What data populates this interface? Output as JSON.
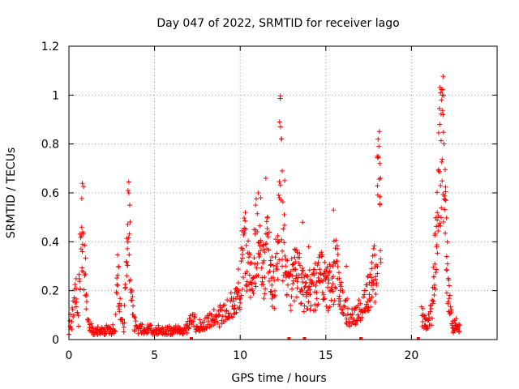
{
  "chart_data": {
    "type": "scatter",
    "title": "Day 047 of 2022, SRMTID for receiver lago",
    "xlabel": "GPS time / hours",
    "ylabel": "SRMTID / TECUs",
    "xlim": [
      0,
      25
    ],
    "ylim": [
      0,
      1.2
    ],
    "x_ticks": [
      0,
      5,
      10,
      15,
      20
    ],
    "x_tick_labels": [
      "0",
      "5",
      "10",
      "15",
      "20"
    ],
    "y_ticks": [
      0,
      0.2,
      0.4,
      0.6,
      0.8,
      1,
      1.2
    ],
    "y_tick_labels": [
      "0",
      "0.2",
      "0.4",
      "0.6",
      "0.8",
      "1",
      "1.2"
    ],
    "grid": true,
    "marker": "plus",
    "marker_color": "#ff0000",
    "series": [
      {
        "name": "SRMTID",
        "profile": [
          [
            0.0,
            0.05
          ],
          [
            0.2,
            0.1
          ],
          [
            0.4,
            0.18
          ],
          [
            0.55,
            0.08
          ],
          [
            0.7,
            0.42
          ],
          [
            0.85,
            0.45
          ],
          [
            1.0,
            0.15
          ],
          [
            1.2,
            0.05
          ],
          [
            1.5,
            0.03
          ],
          [
            2.0,
            0.035
          ],
          [
            2.5,
            0.04
          ],
          [
            2.7,
            0.05
          ],
          [
            2.85,
            0.3
          ],
          [
            3.0,
            0.12
          ],
          [
            3.2,
            0.06
          ],
          [
            3.4,
            0.3
          ],
          [
            3.5,
            0.5
          ],
          [
            3.6,
            0.2
          ],
          [
            3.8,
            0.06
          ],
          [
            4.2,
            0.04
          ],
          [
            5.0,
            0.035
          ],
          [
            6.0,
            0.035
          ],
          [
            6.8,
            0.04
          ],
          [
            7.2,
            0.08
          ],
          [
            7.8,
            0.05
          ],
          [
            8.3,
            0.08
          ],
          [
            9.0,
            0.1
          ],
          [
            9.6,
            0.14
          ],
          [
            10.0,
            0.22
          ],
          [
            10.2,
            0.4
          ],
          [
            10.5,
            0.25
          ],
          [
            10.8,
            0.32
          ],
          [
            11.0,
            0.45
          ],
          [
            11.3,
            0.25
          ],
          [
            11.6,
            0.38
          ],
          [
            12.0,
            0.22
          ],
          [
            12.2,
            0.35
          ],
          [
            12.35,
            0.75
          ],
          [
            12.5,
            0.4
          ],
          [
            12.8,
            0.2
          ],
          [
            13.3,
            0.28
          ],
          [
            13.8,
            0.18
          ],
          [
            14.3,
            0.22
          ],
          [
            14.8,
            0.25
          ],
          [
            15.2,
            0.22
          ],
          [
            15.6,
            0.3
          ],
          [
            16.0,
            0.15
          ],
          [
            16.5,
            0.08
          ],
          [
            17.0,
            0.12
          ],
          [
            17.5,
            0.18
          ],
          [
            17.9,
            0.3
          ],
          [
            18.1,
            0.65
          ],
          [
            18.25,
            0.28
          ]
        ],
        "segment2": [
          [
            20.6,
            0.1
          ],
          [
            20.9,
            0.06
          ],
          [
            21.2,
            0.12
          ],
          [
            21.4,
            0.35
          ],
          [
            21.6,
            0.65
          ],
          [
            21.75,
            0.95
          ],
          [
            21.9,
            0.65
          ],
          [
            22.05,
            0.35
          ],
          [
            22.2,
            0.15
          ],
          [
            22.4,
            0.06
          ],
          [
            22.8,
            0.05
          ]
        ],
        "anomalous_points": [
          [
            0.75,
            0.46
          ],
          [
            0.8,
            0.44
          ],
          [
            3.45,
            0.61
          ],
          [
            3.5,
            0.6
          ],
          [
            3.55,
            0.55
          ],
          [
            11.5,
            0.66
          ],
          [
            11.2,
            0.58
          ],
          [
            12.3,
            0.89
          ],
          [
            12.35,
            0.87
          ],
          [
            12.4,
            0.82
          ],
          [
            12.45,
            0.69
          ],
          [
            12.6,
            0.65
          ],
          [
            13.65,
            0.48
          ],
          [
            15.45,
            0.53
          ],
          [
            18.05,
            0.82
          ],
          [
            18.1,
            0.79
          ],
          [
            18.15,
            0.72
          ],
          [
            18.2,
            0.66
          ],
          [
            18.0,
            0.75
          ],
          [
            21.7,
            1.01
          ],
          [
            21.8,
            1.0
          ],
          [
            21.75,
            0.98
          ],
          [
            21.85,
            0.92
          ],
          [
            21.65,
            0.88
          ],
          [
            21.9,
            0.8
          ],
          [
            10.3,
            0.52
          ],
          [
            10.9,
            0.55
          ],
          [
            11.05,
            0.6
          ],
          [
            16.2,
            0.3
          ],
          [
            14.0,
            0.38
          ]
        ],
        "baseline_markers": [
          7.15,
          12.85,
          13.75,
          17.05,
          20.4
        ]
      }
    ]
  }
}
